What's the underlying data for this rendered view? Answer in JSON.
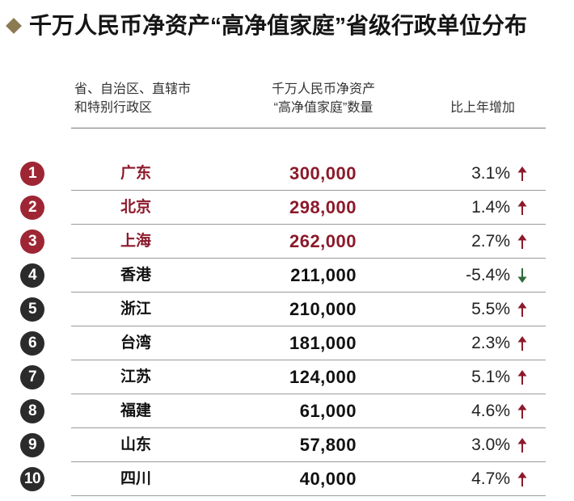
{
  "chart_data": {
    "type": "table",
    "title": "千万人民币净资产“高净值家庭”省级行政单位分布",
    "columns": [
      {
        "lines": [
          "省、自治区、直辖市",
          "和特别行政区"
        ]
      },
      {
        "lines": [
          "千万人民币净资产",
          "“高净值家庭”数量"
        ]
      },
      {
        "lines": [
          "比上年增加"
        ]
      }
    ],
    "rows": [
      {
        "rank": 1,
        "region": "广东",
        "count": "300,000",
        "change": "3.1%",
        "trend_icon": "arrow-up"
      },
      {
        "rank": 2,
        "region": "北京",
        "count": "298,000",
        "change": "1.4%",
        "trend_icon": "arrow-up"
      },
      {
        "rank": 3,
        "region": "上海",
        "count": "262,000",
        "change": "2.7%",
        "trend_icon": "arrow-up"
      },
      {
        "rank": 4,
        "region": "香港",
        "count": "211,000",
        "change": "-5.4%",
        "trend_icon": "arrow-down"
      },
      {
        "rank": 5,
        "region": "浙江",
        "count": "210,000",
        "change": "5.5%",
        "trend_icon": "arrow-up"
      },
      {
        "rank": 6,
        "region": "台湾",
        "count": "181,000",
        "change": "2.3%",
        "trend_icon": "arrow-up"
      },
      {
        "rank": 7,
        "region": "江苏",
        "count": "124,000",
        "change": "5.1%",
        "trend_icon": "arrow-up"
      },
      {
        "rank": 8,
        "region": "福建",
        "count": "61,000",
        "change": "4.6%",
        "trend_icon": "arrow-up"
      },
      {
        "rank": 9,
        "region": "山东",
        "count": "57,800",
        "change": "3.0%",
        "trend_icon": "arrow-up"
      },
      {
        "rank": 10,
        "region": "四川",
        "count": "40,000",
        "change": "4.7%",
        "trend_icon": "arrow-up"
      }
    ]
  },
  "colors": {
    "diamond": "#8c7a52",
    "top3_badge": "#9e2634",
    "top3_text": "#8b1a2b",
    "other_badge": "#2b2b2b",
    "other_text": "#111111",
    "arrow_up": "#8b1a2b",
    "arrow_down": "#2e6a3a",
    "rule": "#9a9a9a",
    "rule_strong": "#777777"
  }
}
